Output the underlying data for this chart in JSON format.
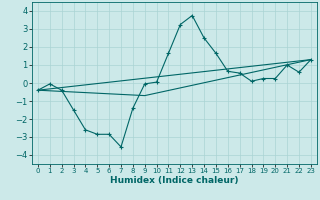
{
  "xlabel": "Humidex (Indice chaleur)",
  "background_color": "#cce9e9",
  "grid_color": "#aad4d4",
  "line_color": "#006666",
  "xlim": [
    -0.5,
    23.5
  ],
  "ylim": [
    -4.5,
    4.5
  ],
  "yticks": [
    -4,
    -3,
    -2,
    -1,
    0,
    1,
    2,
    3,
    4
  ],
  "xticks": [
    0,
    1,
    2,
    3,
    4,
    5,
    6,
    7,
    8,
    9,
    10,
    11,
    12,
    13,
    14,
    15,
    16,
    17,
    18,
    19,
    20,
    21,
    22,
    23
  ],
  "series1_x": [
    0,
    1,
    2,
    3,
    4,
    5,
    6,
    7,
    8,
    9,
    10,
    11,
    12,
    13,
    14,
    15,
    16,
    17,
    18,
    19,
    20,
    21,
    22,
    23
  ],
  "series1_y": [
    -0.4,
    -0.05,
    -0.4,
    -1.5,
    -2.6,
    -2.85,
    -2.85,
    -3.55,
    -1.4,
    -0.05,
    0.05,
    1.65,
    3.25,
    3.75,
    2.5,
    1.65,
    0.65,
    0.55,
    0.1,
    0.25,
    0.25,
    1.0,
    0.6,
    1.3
  ],
  "series2_x": [
    0,
    23
  ],
  "series2_y": [
    -0.4,
    1.3
  ],
  "series3_x": [
    0,
    9,
    23
  ],
  "series3_y": [
    -0.4,
    -0.7,
    1.3
  ]
}
